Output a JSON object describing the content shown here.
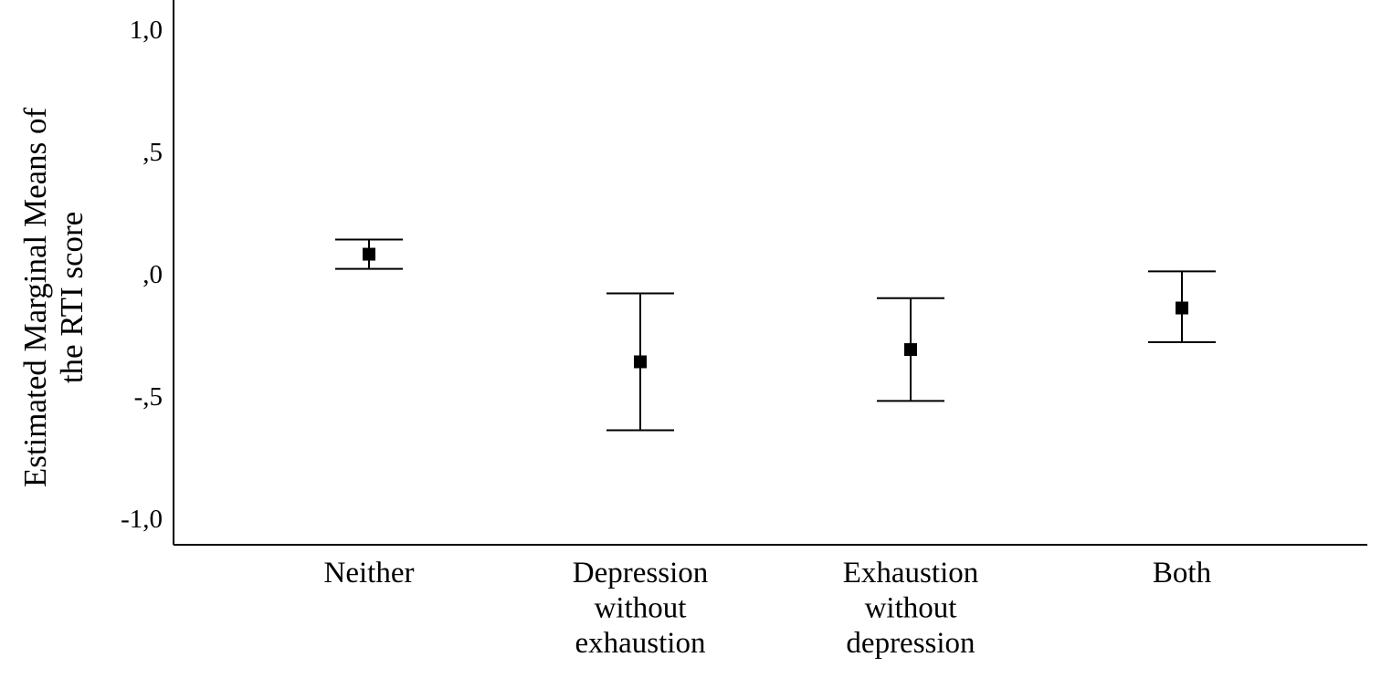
{
  "chart_data": {
    "type": "scatter",
    "title": "",
    "xlabel": "",
    "ylabel_lines": [
      "Estimated Marginal Means of",
      "the RTI score"
    ],
    "ylim": [
      -1.1,
      1.1
    ],
    "yticks": [
      1.0,
      0.5,
      0.0,
      -0.5,
      -1.0
    ],
    "ytick_labels": [
      "1,0",
      ",5",
      ",0",
      "-,5",
      "-1,0"
    ],
    "grid": false,
    "error_bars": true,
    "categories": [
      [
        "Neither"
      ],
      [
        "Depression",
        "without",
        "exhaustion"
      ],
      [
        "Exhaustion",
        "without",
        "depression"
      ],
      [
        "Both"
      ]
    ],
    "means": [
      0.08,
      -0.36,
      -0.31,
      -0.14
    ],
    "ci_lower": [
      0.02,
      -0.64,
      -0.52,
      -0.28
    ],
    "ci_upper": [
      0.14,
      -0.08,
      -0.1,
      0.01
    ],
    "marker_color": "#000000",
    "line_color": "#000000"
  }
}
